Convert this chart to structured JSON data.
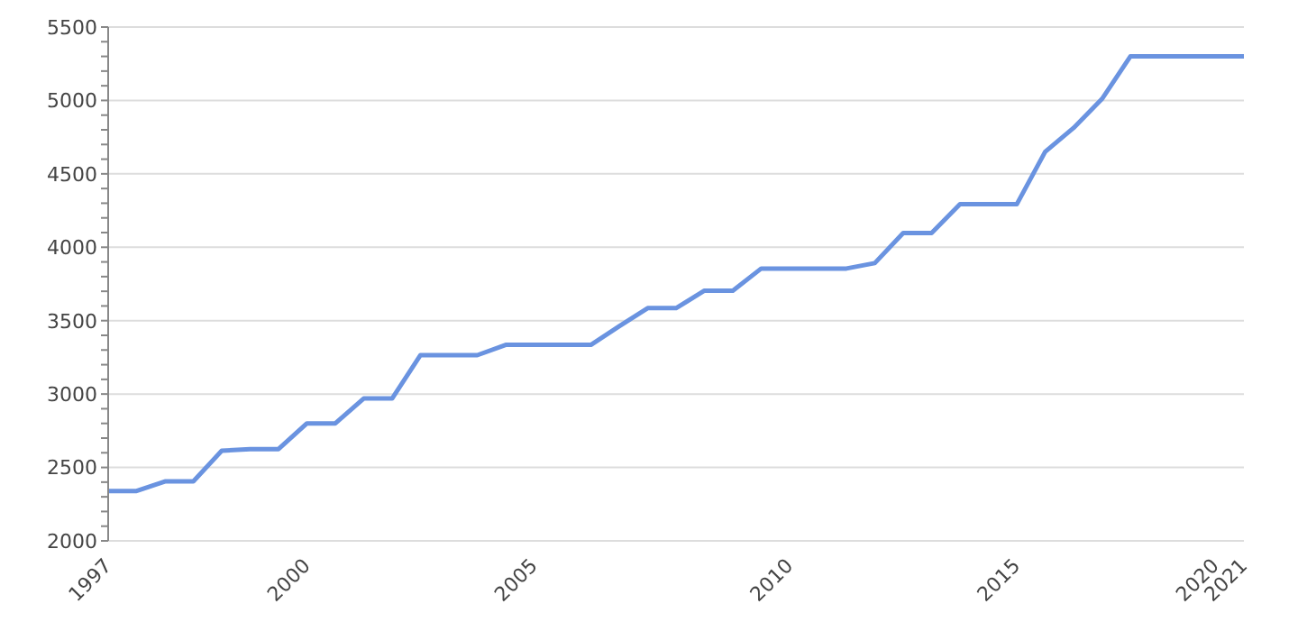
{
  "chart_data": {
    "type": "line",
    "categories": [
      "1997",
      null,
      null,
      null,
      null,
      null,
      null,
      "2000",
      null,
      null,
      null,
      null,
      null,
      null,
      null,
      "2005",
      null,
      null,
      null,
      null,
      null,
      null,
      null,
      null,
      "2010",
      null,
      null,
      null,
      null,
      null,
      null,
      null,
      "2015",
      null,
      null,
      null,
      null,
      null,
      null,
      "2020",
      "2021"
    ],
    "series": [
      {
        "color": "#6a93e0",
        "values": [
          2340,
          2340,
          2405,
          2405,
          2614,
          2625,
          2625,
          2800,
          2800,
          2970,
          2970,
          3265,
          3265,
          3265,
          3335,
          3335,
          3335,
          3335,
          3462,
          3585,
          3585,
          3704,
          3704,
          3855,
          3855,
          3855,
          3855,
          3892,
          4097,
          4097,
          4293,
          4293,
          4293,
          4650,
          4813,
          5010,
          5300,
          5300,
          5300,
          5300,
          5300
        ]
      }
    ],
    "ylim": [
      2000,
      5500
    ],
    "yticks": [
      2000,
      {
        "value": 2100,
        "label": null
      },
      {
        "value": 2200,
        "label": null
      },
      {
        "value": 2300,
        "label": null
      },
      {
        "value": 2400,
        "label": null
      },
      2500,
      {
        "value": 2600,
        "label": null
      },
      {
        "value": 2700,
        "label": null
      },
      {
        "value": 2800,
        "label": null
      },
      {
        "value": 2900,
        "label": null
      },
      3000,
      {
        "value": 3100,
        "label": null
      },
      {
        "value": 3200,
        "label": null
      },
      {
        "value": 3300,
        "label": null
      },
      {
        "value": 3400,
        "label": null
      },
      3500,
      {
        "value": 3600,
        "label": null
      },
      {
        "value": 3700,
        "label": null
      },
      {
        "value": 3800,
        "label": null
      },
      {
        "value": 3900,
        "label": null
      },
      4000,
      {
        "value": 4100,
        "label": null
      },
      {
        "value": 4200,
        "label": null
      },
      {
        "value": 4300,
        "label": null
      },
      {
        "value": 4400,
        "label": null
      },
      4500,
      {
        "value": 4600,
        "label": null
      },
      {
        "value": 4700,
        "label": null
      },
      {
        "value": 4800,
        "label": null
      },
      {
        "value": 4900,
        "label": null
      },
      5000,
      {
        "value": 5100,
        "label": null
      },
      {
        "value": 5200,
        "label": null
      },
      {
        "value": 5300,
        "label": null
      },
      {
        "value": 5400,
        "label": null
      },
      5500
    ],
    "grid": "y",
    "marker": "none",
    "line_style": "solid",
    "legend": false
  }
}
